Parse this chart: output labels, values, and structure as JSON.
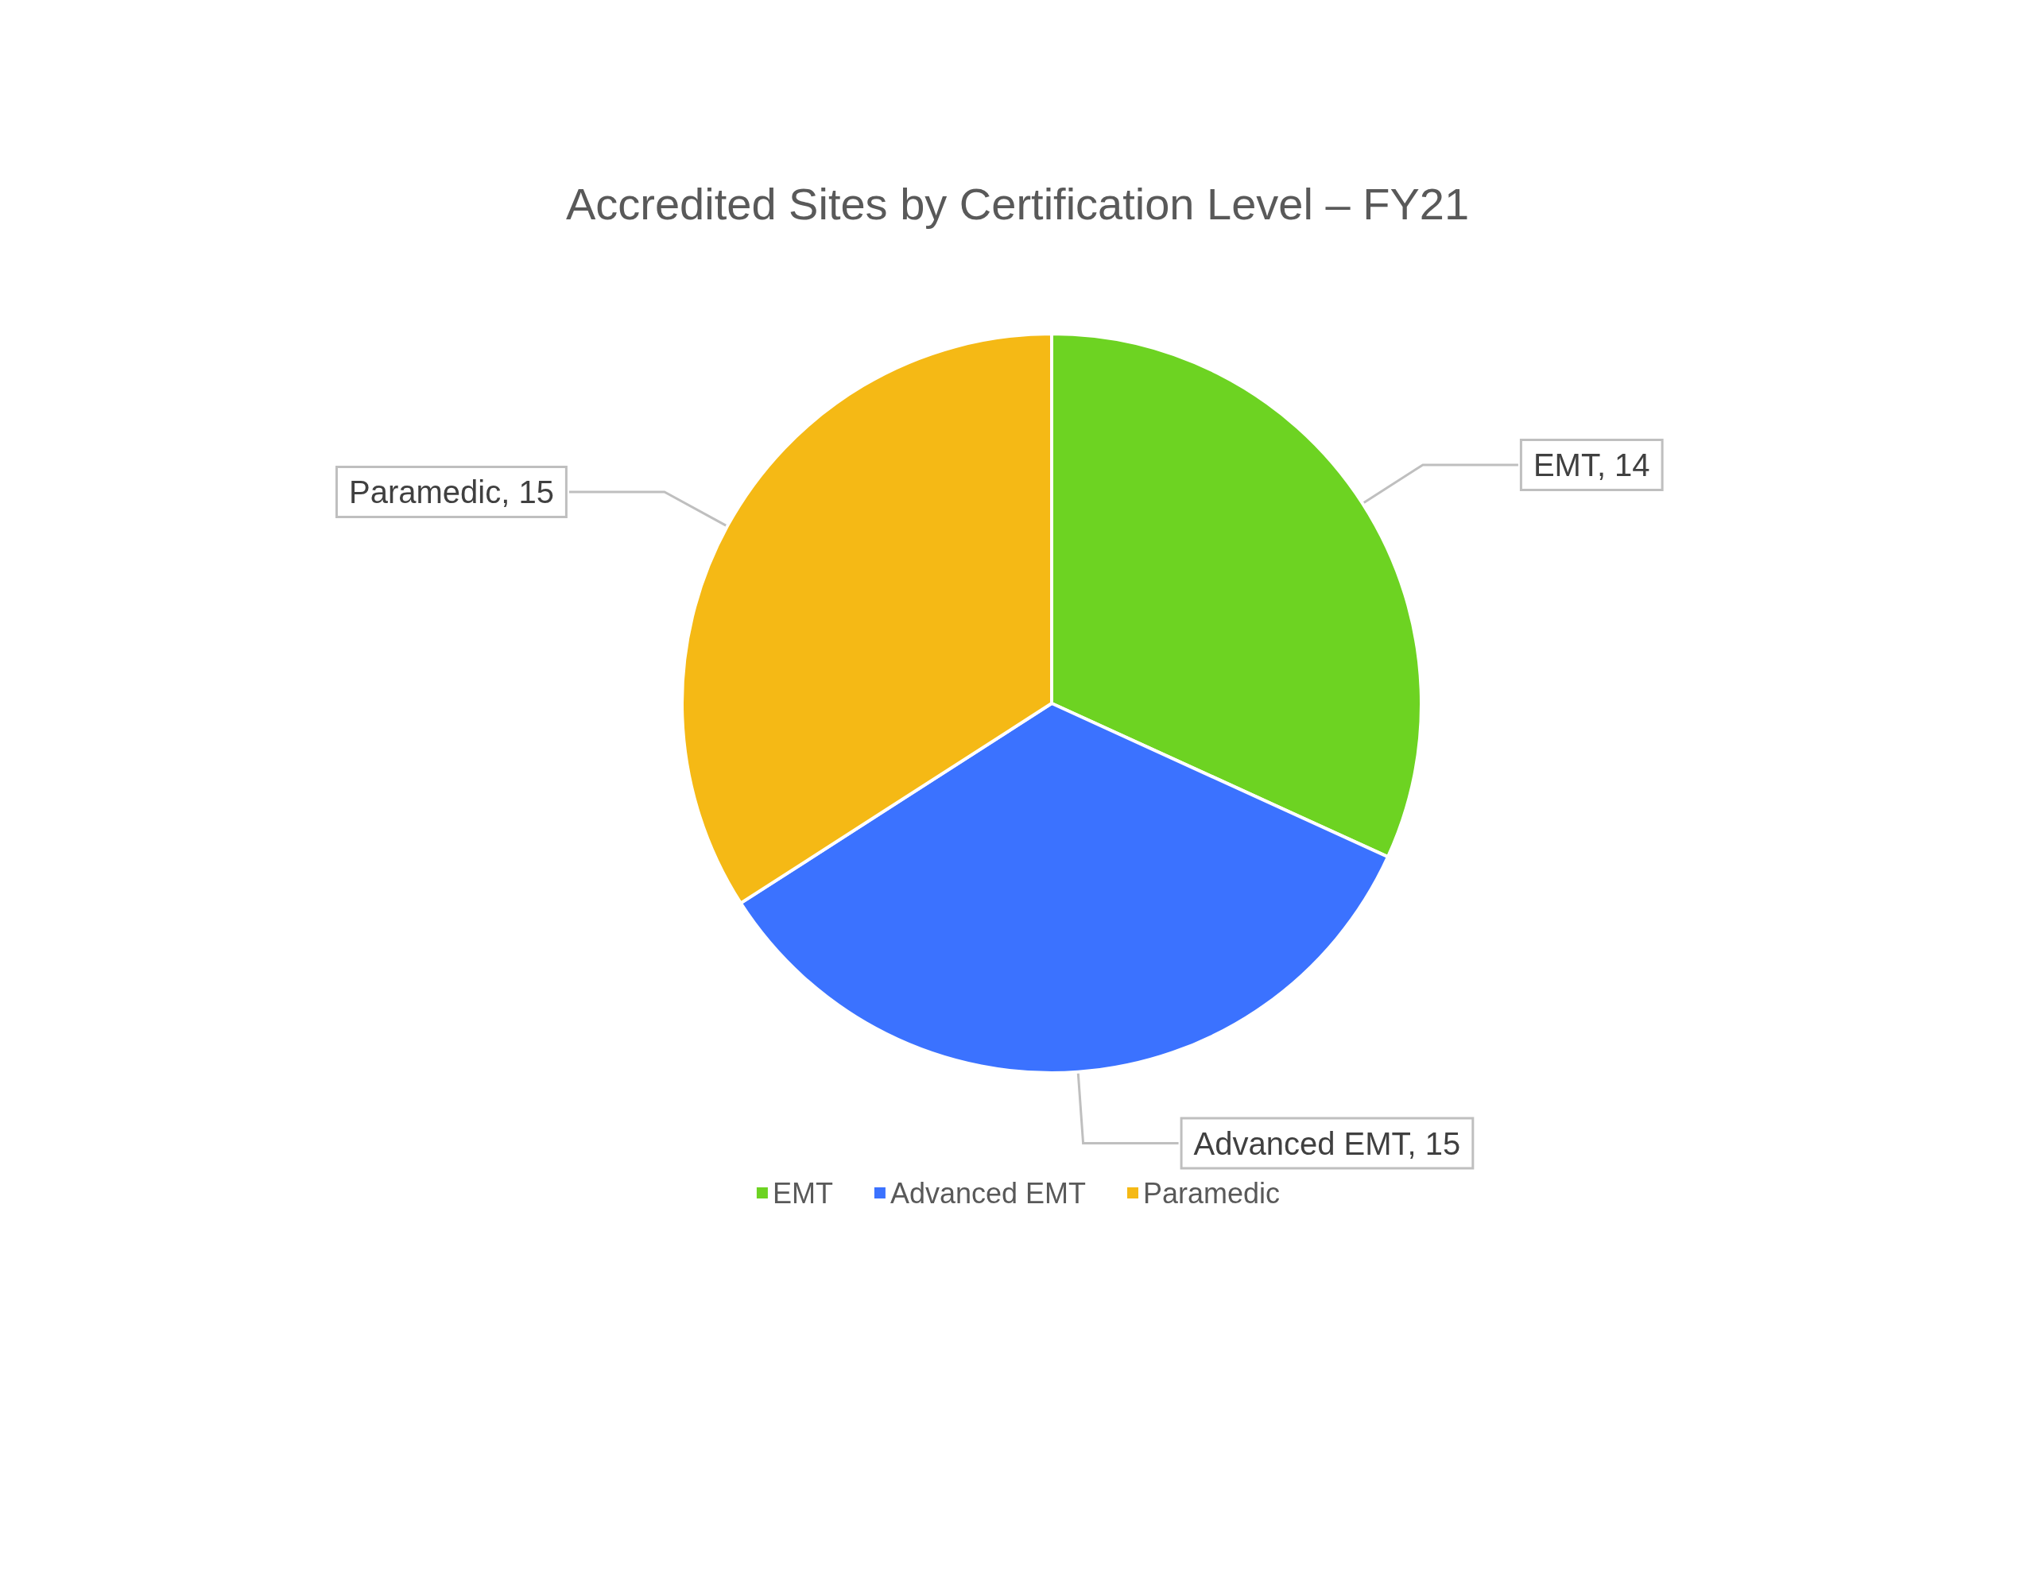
{
  "chart_data": {
    "type": "pie",
    "title": "Accredited Sites by Certification Level – FY21",
    "categories": [
      "EMT",
      "Advanced EMT",
      "Paramedic"
    ],
    "values": [
      14,
      15,
      15
    ],
    "value_labels": [
      "EMT, 14",
      "Advanced EMT, 15",
      "Paramedic, 15"
    ],
    "colors": [
      "#6dd322",
      "#3b72ff",
      "#f5b915"
    ],
    "legend": "bottom"
  }
}
